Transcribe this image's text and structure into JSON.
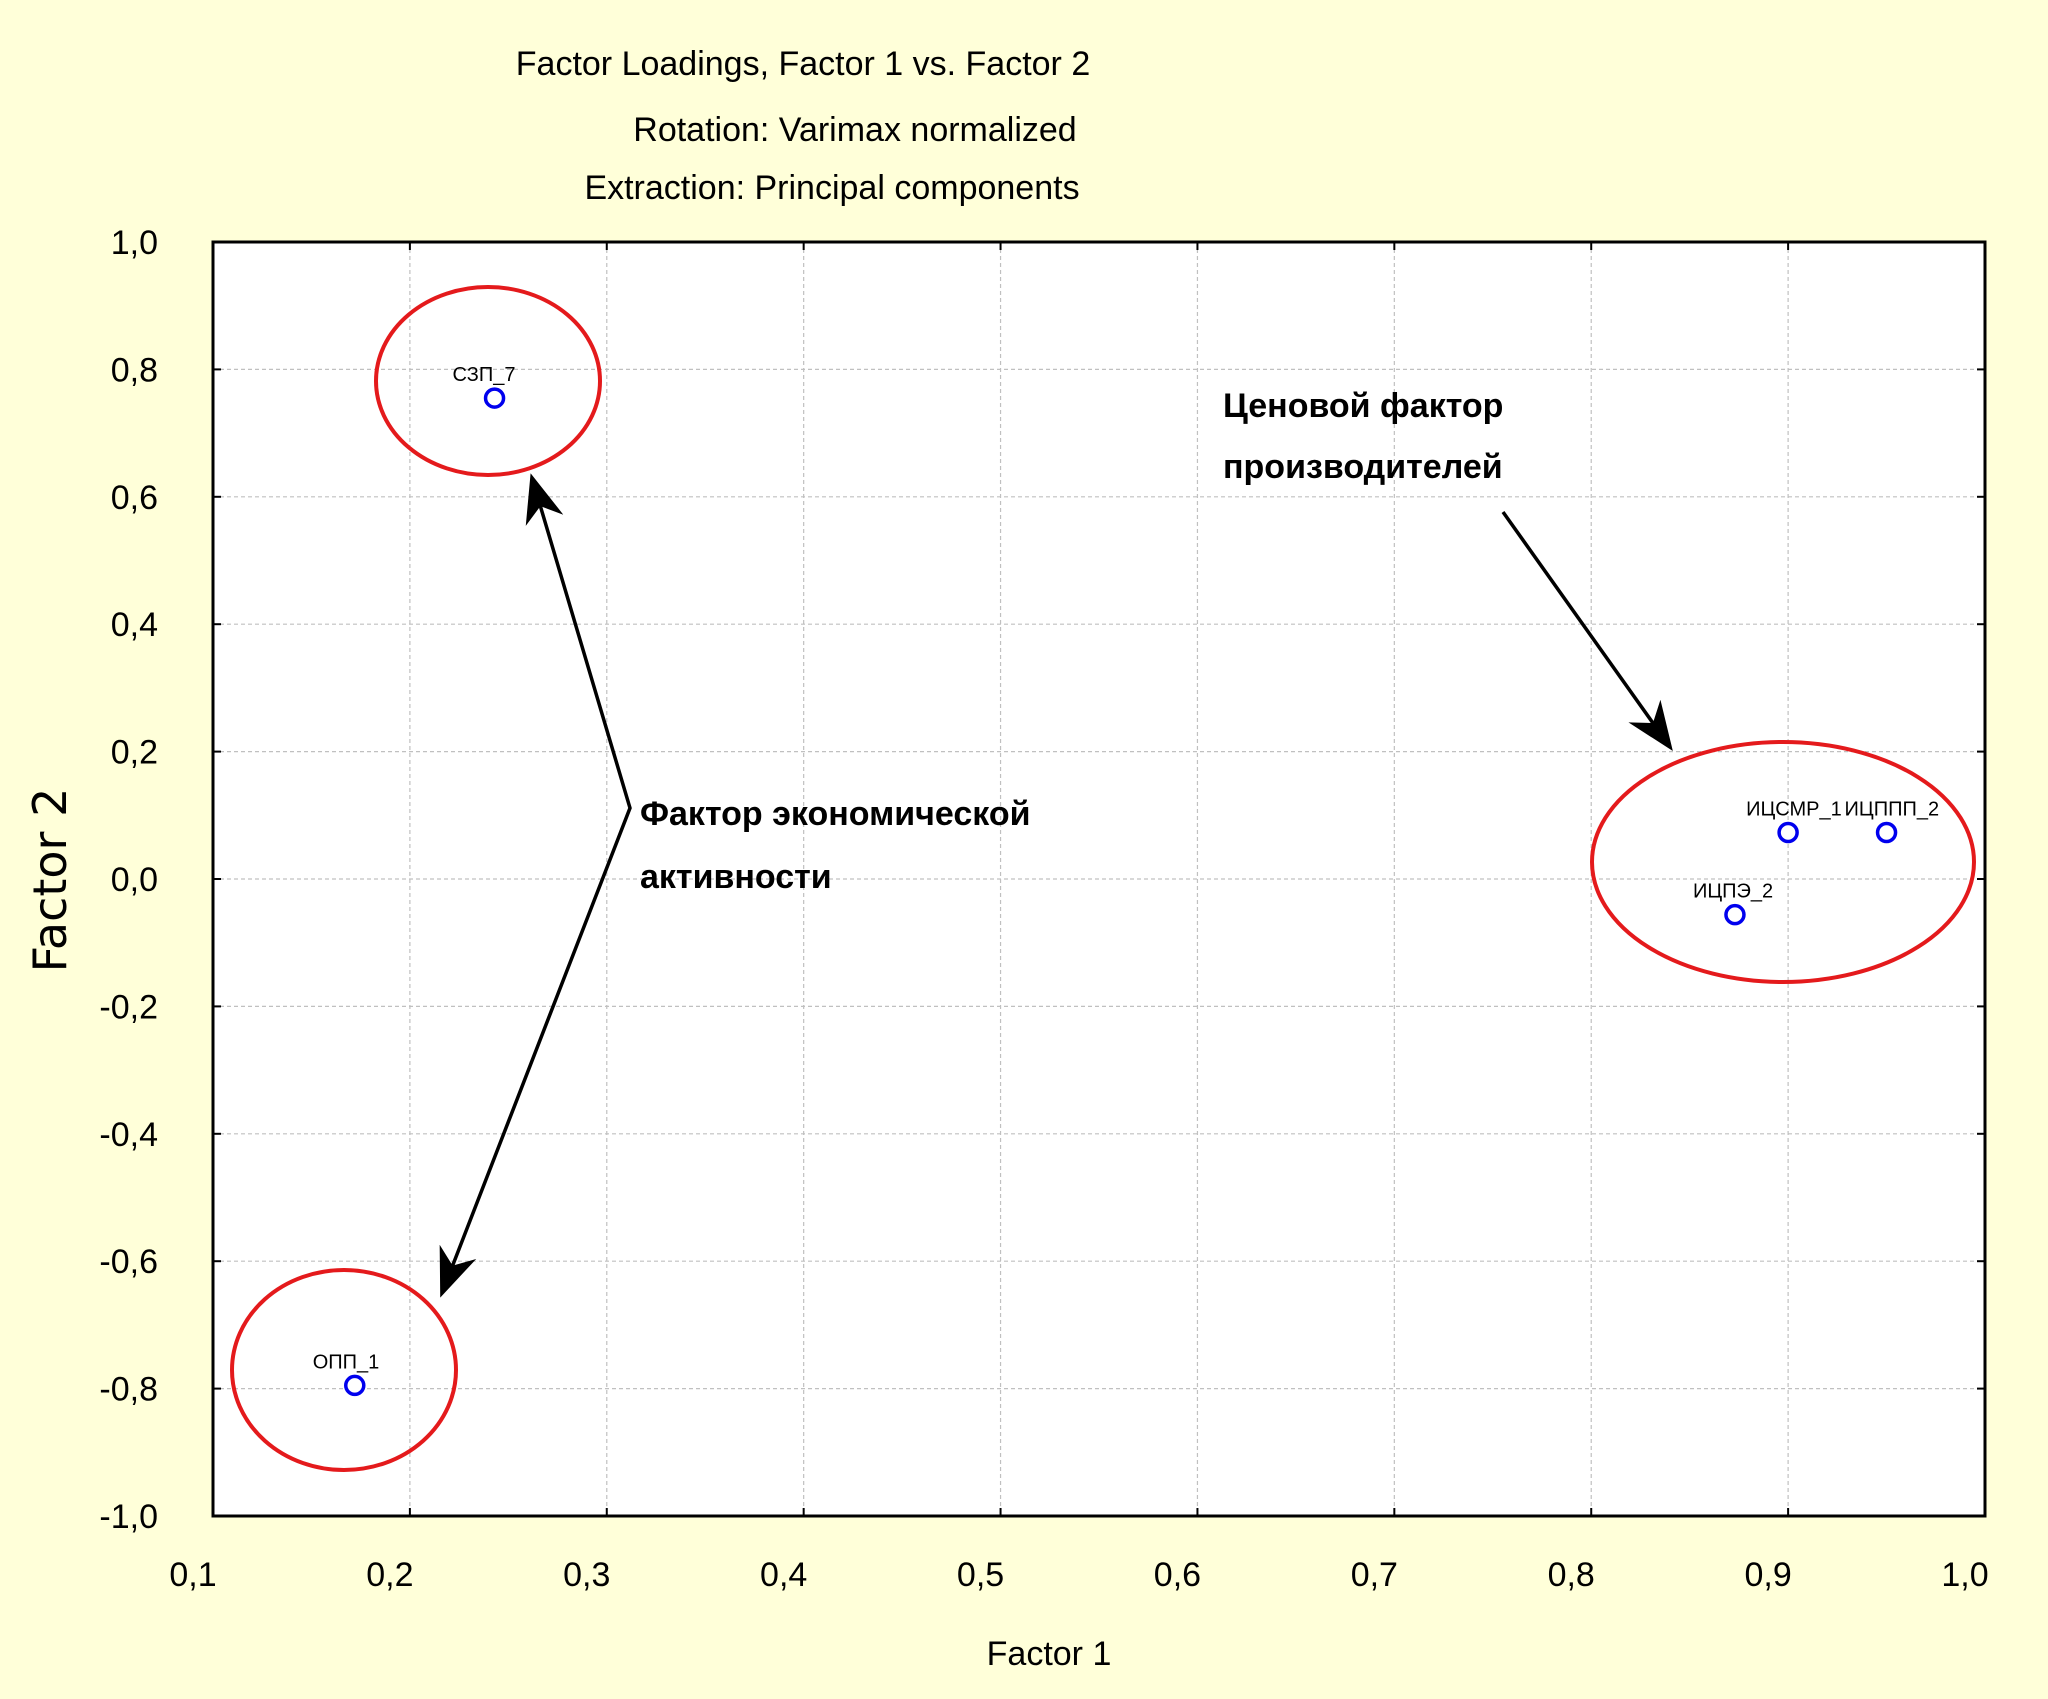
{
  "chart_data": {
    "type": "scatter",
    "title": "Factor Loadings, Factor 1 vs. Factor 2",
    "subtitle_lines": [
      "Rotation: Varimax normalized",
      "Extraction: Principal components"
    ],
    "xlabel": "Factor 1",
    "ylabel": "Factor 2",
    "xlim": [
      0.1,
      1.0
    ],
    "ylim": [
      -1.0,
      1.0
    ],
    "x_ticks": [
      "0,1",
      "0,2",
      "0,3",
      "0,4",
      "0,5",
      "0,6",
      "0,7",
      "0,8",
      "0,9",
      "1,0"
    ],
    "x_tick_values": [
      0.1,
      0.2,
      0.3,
      0.4,
      0.5,
      0.6,
      0.7,
      0.8,
      0.9,
      1.0
    ],
    "y_ticks": [
      "1,0",
      "0,8",
      "0,6",
      "0,4",
      "0,2",
      "0,0",
      "-0,2",
      "-0,4",
      "-0,6",
      "-0,8",
      "-1,0"
    ],
    "y_tick_values": [
      1.0,
      0.8,
      0.6,
      0.4,
      0.2,
      0.0,
      -0.2,
      -0.4,
      -0.6,
      -0.8,
      -1.0
    ],
    "grid": true,
    "points": [
      {
        "label": "СЗП_7",
        "x": 0.243,
        "y": 0.755
      },
      {
        "label": "ОПП_1",
        "x": 0.172,
        "y": -0.795
      },
      {
        "label": "ИЦСМР_1",
        "x": 0.9,
        "y": 0.073
      },
      {
        "label": "ИЦППП_2",
        "x": 0.95,
        "y": 0.073
      },
      {
        "label": "ИЦПЭ_2",
        "x": 0.873,
        "y": -0.056
      }
    ],
    "annotations": [
      {
        "lines": [
          "Ценовой фактор",
          "производителей"
        ]
      },
      {
        "lines": [
          "Фактор экономической",
          "активности"
        ]
      }
    ],
    "colors": {
      "background": "#ffffd9",
      "plot_area": "#ffffff",
      "marker": "#0000ee",
      "cluster_ellipse": "#e41a1c",
      "grid": "#c0c0c0",
      "frame": "#000000"
    }
  }
}
